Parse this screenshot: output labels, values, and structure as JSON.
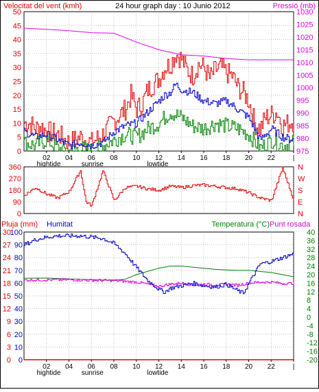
{
  "title": "24 hour graph day : 10 Junio 2012",
  "colors": {
    "red": "#e00000",
    "magenta": "#e000e0",
    "blue": "#0000c8",
    "green": "#008000",
    "gray": "#808080",
    "black": "#000000"
  },
  "chart_data": [
    {
      "type": "line",
      "ylabel_left": "Velocitat del vent (kmh)",
      "ylabel_right": "Pressió (mb)",
      "ylim_left": [
        0,
        50
      ],
      "ylim_right": [
        975,
        1030
      ],
      "yticks_left": [
        0,
        5,
        10,
        15,
        20,
        25,
        30,
        35,
        40,
        45,
        50
      ],
      "yticks_right": [
        975,
        980,
        985,
        990,
        995,
        1000,
        1005,
        1010,
        1015,
        1020,
        1025,
        1030
      ],
      "xticks": [
        "02",
        "04",
        "06",
        "08",
        "10",
        "12",
        "14",
        "16",
        "18",
        "20",
        "22",
        "|"
      ],
      "markers": [
        {
          "label": "hightide",
          "hour": 2.2
        },
        {
          "label": "sunrise",
          "hour": 6.1
        },
        {
          "label": "lowtide",
          "hour": 11.9
        }
      ],
      "series": [
        {
          "values_desc": "Gust (red)",
          "points": [
            [
              0,
              10
            ],
            [
              0.5,
              10
            ],
            [
              1,
              8
            ],
            [
              1.5,
              9
            ],
            [
              2,
              7
            ],
            [
              3,
              6
            ],
            [
              4,
              3
            ],
            [
              5,
              5
            ],
            [
              6,
              3
            ],
            [
              7,
              6
            ],
            [
              8,
              11
            ],
            [
              9,
              15
            ],
            [
              9.5,
              20
            ],
            [
              10,
              15
            ],
            [
              10.5,
              17
            ],
            [
              11,
              22
            ],
            [
              12,
              26
            ],
            [
              12.5,
              30
            ],
            [
              13,
              31
            ],
            [
              13.5,
              35
            ],
            [
              14,
              33
            ],
            [
              14.5,
              29
            ],
            [
              15,
              27
            ],
            [
              15.5,
              31
            ],
            [
              16,
              30
            ],
            [
              16.5,
              26
            ],
            [
              17,
              29
            ],
            [
              17.5,
              30
            ],
            [
              18,
              28
            ],
            [
              18.5,
              27
            ],
            [
              19,
              23
            ],
            [
              19.5,
              21
            ],
            [
              20,
              18
            ],
            [
              20.5,
              10
            ],
            [
              21,
              8
            ],
            [
              21.5,
              12
            ],
            [
              22,
              13
            ],
            [
              22.5,
              14
            ],
            [
              23,
              9
            ],
            [
              24,
              11
            ]
          ]
        },
        {
          "values_desc": "Average wind (blue)",
          "points": [
            [
              0,
              7
            ],
            [
              1,
              5
            ],
            [
              2,
              6
            ],
            [
              3,
              4
            ],
            [
              4,
              2
            ],
            [
              5,
              3
            ],
            [
              6,
              2
            ],
            [
              7,
              3
            ],
            [
              8,
              7
            ],
            [
              9,
              9
            ],
            [
              10,
              10
            ],
            [
              11,
              14
            ],
            [
              12,
              18
            ],
            [
              12.5,
              20
            ],
            [
              13,
              21
            ],
            [
              13.5,
              24
            ],
            [
              14,
              22
            ],
            [
              15,
              21
            ],
            [
              16,
              18
            ],
            [
              17,
              17
            ],
            [
              18,
              18
            ],
            [
              19,
              15
            ],
            [
              20,
              12
            ],
            [
              21,
              4
            ],
            [
              22,
              8
            ],
            [
              23,
              5
            ],
            [
              24,
              4
            ]
          ]
        },
        {
          "values_desc": "Minimum wind (green)",
          "points": [
            [
              0,
              3
            ],
            [
              1,
              2
            ],
            [
              2,
              4
            ],
            [
              3,
              1
            ],
            [
              4,
              0
            ],
            [
              5,
              1
            ],
            [
              6,
              0
            ],
            [
              7,
              2
            ],
            [
              8,
              4
            ],
            [
              9,
              6
            ],
            [
              10,
              5
            ],
            [
              11,
              8
            ],
            [
              12,
              10
            ],
            [
              13,
              14
            ],
            [
              14,
              12
            ],
            [
              15,
              9
            ],
            [
              16,
              8
            ],
            [
              17,
              10
            ],
            [
              18,
              9
            ],
            [
              19,
              8
            ],
            [
              20,
              6
            ],
            [
              21,
              1
            ],
            [
              22,
              4
            ],
            [
              23,
              2
            ],
            [
              24,
              3
            ]
          ]
        },
        {
          "name": "Pressió (mb)",
          "points": [
            [
              0,
              1023.5
            ],
            [
              2,
              1023
            ],
            [
              4,
              1022.5
            ],
            [
              6,
              1021.7
            ],
            [
              8,
              1021.5
            ],
            [
              10,
              1018
            ],
            [
              12,
              1015
            ],
            [
              14,
              1013
            ],
            [
              16,
              1012.5
            ],
            [
              18,
              1011.5
            ],
            [
              20,
              1011
            ],
            [
              24,
              1011
            ]
          ]
        }
      ]
    },
    {
      "type": "line",
      "ylim_left": [
        0,
        360
      ],
      "yticks_left": [
        0,
        90,
        180,
        270,
        360
      ],
      "compass_right": [
        "N",
        "W",
        "S",
        "E",
        "N"
      ],
      "series": [
        {
          "values_desc": "Wind direction (red)",
          "points": [
            [
              0,
              140
            ],
            [
              1,
              200
            ],
            [
              2,
              150
            ],
            [
              3,
              120
            ],
            [
              4,
              170
            ],
            [
              5,
              330
            ],
            [
              5.5,
              90
            ],
            [
              6,
              60
            ],
            [
              7,
              330
            ],
            [
              8,
              100
            ],
            [
              9,
              200
            ],
            [
              10,
              210
            ],
            [
              11,
              190
            ],
            [
              12,
              180
            ],
            [
              13,
              210
            ],
            [
              14,
              200
            ],
            [
              15,
              215
            ],
            [
              16,
              220
            ],
            [
              17,
              210
            ],
            [
              18,
              200
            ],
            [
              19,
              190
            ],
            [
              20,
              160
            ],
            [
              21,
              120
            ],
            [
              22,
              100
            ],
            [
              23,
              350
            ],
            [
              24,
              100
            ]
          ]
        }
      ]
    },
    {
      "type": "line",
      "ylabel_left": "Pluja (mm)",
      "ylabel_left2": "Humitat",
      "ylabel_right": "Temperatura (°C)",
      "ylabel_right2": "Punt rosada",
      "ylim_left": [
        0,
        30
      ],
      "ylim_left2": [
        0,
        100
      ],
      "ylim_right": [
        -20,
        40
      ],
      "yticks_left": [
        0,
        3,
        6,
        9,
        12,
        15,
        18,
        21,
        24,
        27,
        30
      ],
      "yticks_left2": [
        0,
        10,
        20,
        30,
        40,
        50,
        60,
        70,
        80,
        90,
        100
      ],
      "yticks_right": [
        -20,
        -16,
        -12,
        -8,
        -4,
        0,
        4,
        8,
        12,
        16,
        20,
        24,
        28,
        32,
        36,
        40
      ],
      "xticks": [
        "02",
        "04",
        "06",
        "08",
        "10",
        "12",
        "14",
        "16",
        "18",
        "20",
        "22",
        "|"
      ],
      "markers": [
        {
          "label": "hightide",
          "hour": 2.2
        },
        {
          "label": "sunrise",
          "hour": 6.1
        },
        {
          "label": "lowtide",
          "hour": 11.9
        }
      ],
      "series": [
        {
          "name": "Humitat",
          "points": [
            [
              0,
              90
            ],
            [
              1,
              94
            ],
            [
              2,
              96
            ],
            [
              3,
              97
            ],
            [
              4,
              97
            ],
            [
              5,
              97
            ],
            [
              6,
              96
            ],
            [
              7,
              95
            ],
            [
              8,
              91
            ],
            [
              9,
              83
            ],
            [
              10,
              72
            ],
            [
              11,
              62
            ],
            [
              12,
              55
            ],
            [
              12.5,
              53
            ],
            [
              13,
              56
            ],
            [
              14,
              58
            ],
            [
              15,
              60
            ],
            [
              16,
              58
            ],
            [
              17,
              57
            ],
            [
              18,
              59
            ],
            [
              19,
              54
            ],
            [
              19.5,
              52
            ],
            [
              20,
              60
            ],
            [
              21,
              75
            ],
            [
              22,
              77
            ],
            [
              23,
              80
            ],
            [
              24,
              83
            ]
          ]
        },
        {
          "name": "Temperatura (°C)",
          "points": [
            [
              0,
              18.3
            ],
            [
              2,
              18.4
            ],
            [
              4,
              18
            ],
            [
              6,
              17.6
            ],
            [
              8,
              17.3
            ],
            [
              9,
              17.8
            ],
            [
              10,
              20
            ],
            [
              11,
              21.5
            ],
            [
              12,
              23
            ],
            [
              13,
              24
            ],
            [
              14,
              24
            ],
            [
              15,
              23.5
            ],
            [
              16,
              23
            ],
            [
              17,
              22.5
            ],
            [
              18,
              22.2
            ],
            [
              19,
              22
            ],
            [
              20,
              22
            ],
            [
              21,
              21.5
            ],
            [
              22,
              21
            ],
            [
              23,
              20
            ],
            [
              24,
              19
            ]
          ]
        },
        {
          "name": "Punt rosada",
          "points": [
            [
              0,
              17.4
            ],
            [
              2,
              17.5
            ],
            [
              4,
              17.6
            ],
            [
              6,
              17.3
            ],
            [
              8,
              17.2
            ],
            [
              9,
              16.8
            ],
            [
              10,
              16.5
            ],
            [
              11,
              15.5
            ],
            [
              12,
              14.5
            ],
            [
              13,
              15.5
            ],
            [
              14,
              16
            ],
            [
              15,
              15
            ],
            [
              16,
              15.5
            ],
            [
              17,
              15
            ],
            [
              18,
              15.5
            ],
            [
              19,
              15
            ],
            [
              20,
              16
            ],
            [
              21,
              16.5
            ],
            [
              22,
              16.5
            ],
            [
              23,
              15.8
            ],
            [
              24,
              15.9
            ]
          ]
        },
        {
          "name": "Pluja (mm)",
          "points": [
            [
              0,
              0
            ],
            [
              24,
              0
            ]
          ]
        }
      ]
    }
  ]
}
